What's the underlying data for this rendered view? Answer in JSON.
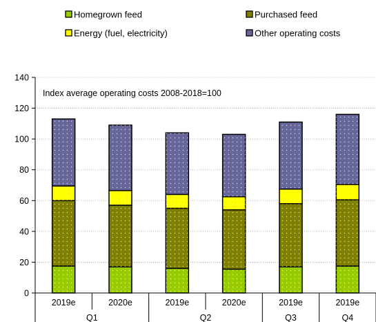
{
  "chart_data": {
    "type": "bar",
    "stacked": true,
    "annotation": "Index average operating costs 2008-2018=100",
    "groups": [
      {
        "label": "Q1",
        "categories": [
          "2019e",
          "2020e"
        ]
      },
      {
        "label": "Q2",
        "categories": [
          "2019e",
          "2020e"
        ]
      },
      {
        "label": "Q3",
        "categories": [
          "2019e"
        ]
      },
      {
        "label": "Q4",
        "categories": [
          "2019e"
        ]
      }
    ],
    "categories": [
      "2019e",
      "2020e",
      "2019e",
      "2020e",
      "2019e",
      "2019e"
    ],
    "series": [
      {
        "name": "Homegrown feed",
        "color": "#99cc00",
        "values": [
          17.5,
          17,
          16,
          15.5,
          17,
          17.5
        ]
      },
      {
        "name": "Purchased feed",
        "color": "#808000",
        "values": [
          42.5,
          40,
          39,
          38.5,
          41,
          43
        ]
      },
      {
        "name": "Energy (fuel, electricity)",
        "color": "#ffff00",
        "values": [
          9.5,
          9.5,
          9,
          8.5,
          9.5,
          10
        ]
      },
      {
        "name": "Other operating costs",
        "color": "#666699",
        "values": [
          43.5,
          42.5,
          40,
          40.5,
          43.5,
          45.5
        ]
      }
    ],
    "ylim": [
      0,
      140
    ],
    "yticks": [
      0,
      20,
      40,
      60,
      80,
      100,
      120,
      140
    ],
    "grid": "horizontal-dotted",
    "legend": "top"
  }
}
